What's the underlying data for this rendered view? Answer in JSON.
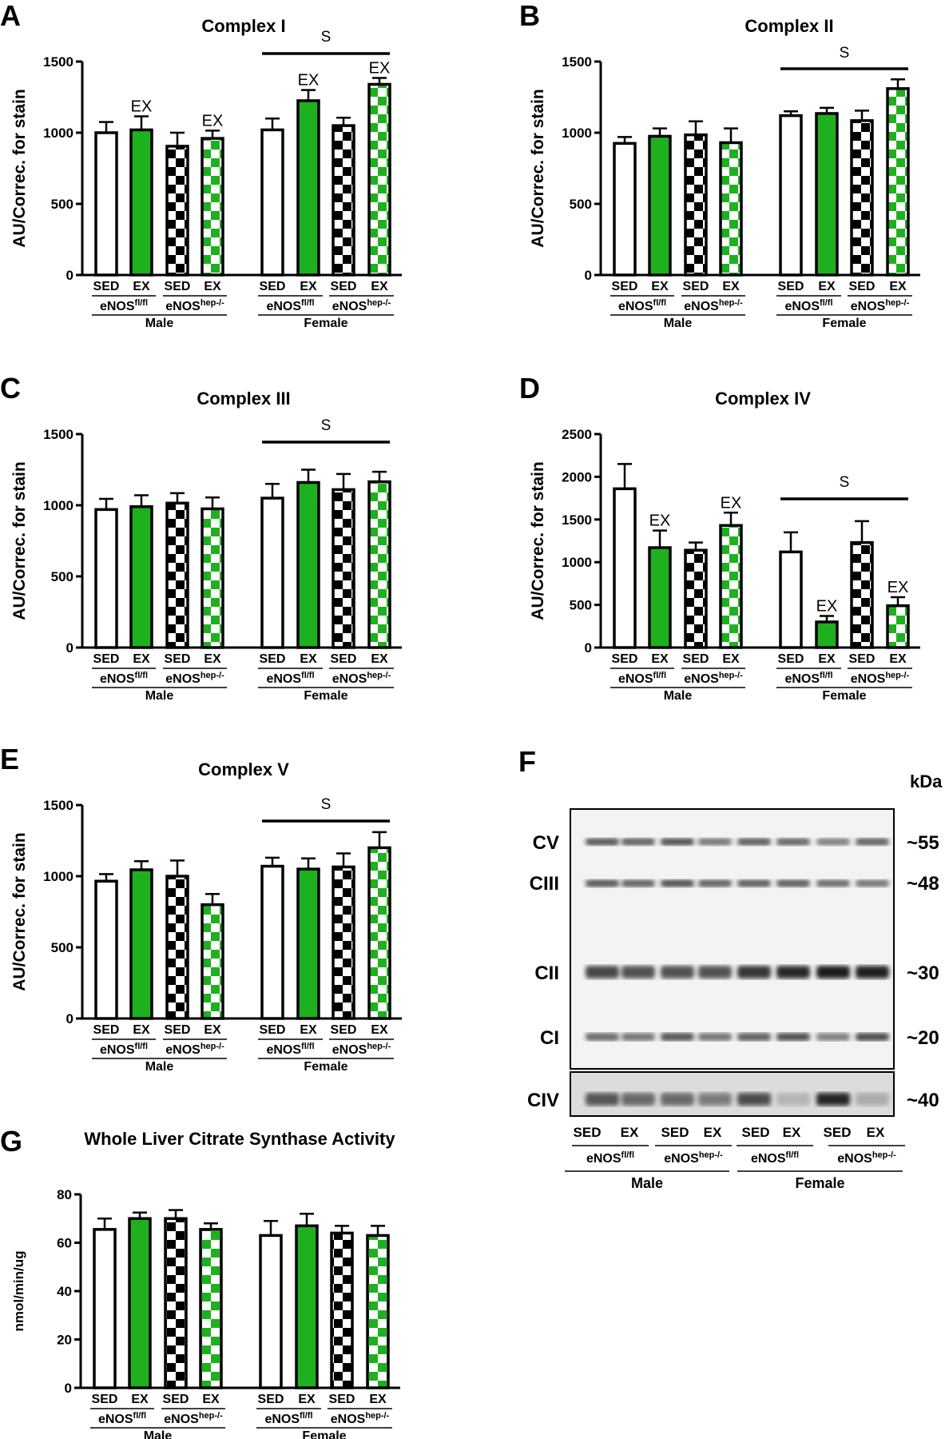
{
  "colors": {
    "green": "#1fb01f",
    "black": "#000000",
    "white": "#ffffff"
  },
  "x_labels": {
    "treatments": [
      "SED",
      "EX"
    ],
    "genotype_base": "eNOS",
    "genotype_sups": [
      "fl/fl",
      "hep-/-"
    ],
    "sexes": [
      "Male",
      "Female"
    ]
  },
  "bar_styles": [
    "white",
    "green",
    "black-checker",
    "green-checker"
  ],
  "chart_data": [
    {
      "panel": "A",
      "type": "bar",
      "title": "Complex I",
      "ylabel": "AU/Correc. for stain",
      "ylim": [
        0,
        1500
      ],
      "yticks": [
        0,
        500,
        1000,
        1500
      ],
      "categories": [
        "Male eNOSfl/fl SED",
        "Male eNOSfl/fl EX",
        "Male eNOShep-/- SED",
        "Male eNOShep-/- EX",
        "Female eNOSfl/fl SED",
        "Female eNOSfl/fl EX",
        "Female eNOShep-/- SED",
        "Female eNOShep-/- EX"
      ],
      "values": [
        1000,
        1020,
        905,
        960,
        1020,
        1225,
        1050,
        1340
      ],
      "errors": [
        75,
        95,
        95,
        55,
        80,
        75,
        55,
        45
      ],
      "annotations": [
        "",
        "EX",
        "",
        "EX",
        "",
        "EX",
        "",
        "EX"
      ],
      "group_annotation": "S"
    },
    {
      "panel": "B",
      "type": "bar",
      "title": "Complex II",
      "ylabel": "AU/Correc. for stain",
      "ylim": [
        0,
        1500
      ],
      "yticks": [
        0,
        500,
        1000,
        1500
      ],
      "categories": [
        "Male eNOSfl/fl SED",
        "Male eNOSfl/fl EX",
        "Male eNOShep-/- SED",
        "Male eNOShep-/- EX",
        "Female eNOSfl/fl SED",
        "Female eNOSfl/fl EX",
        "Female eNOShep-/- SED",
        "Female eNOShep-/- EX"
      ],
      "values": [
        925,
        975,
        985,
        930,
        1120,
        1135,
        1085,
        1310
      ],
      "errors": [
        45,
        55,
        95,
        100,
        30,
        40,
        70,
        65
      ],
      "annotations": [
        "",
        "",
        "",
        "",
        "",
        "",
        "",
        ""
      ],
      "group_annotation": "S"
    },
    {
      "panel": "C",
      "type": "bar",
      "title": "Complex III",
      "ylabel": "AU/Correc. for stain",
      "ylim": [
        0,
        1500
      ],
      "yticks": [
        0,
        500,
        1000,
        1500
      ],
      "categories": [
        "Male eNOSfl/fl SED",
        "Male eNOSfl/fl EX",
        "Male eNOShep-/- SED",
        "Male eNOShep-/- EX",
        "Female eNOSfl/fl SED",
        "Female eNOSfl/fl EX",
        "Female eNOShep-/- SED",
        "Female eNOShep-/- EX"
      ],
      "values": [
        970,
        990,
        1015,
        975,
        1050,
        1160,
        1110,
        1165
      ],
      "errors": [
        75,
        80,
        70,
        80,
        100,
        90,
        110,
        70
      ],
      "annotations": [
        "",
        "",
        "",
        "",
        "",
        "",
        "",
        ""
      ],
      "group_annotation": "S"
    },
    {
      "panel": "D",
      "type": "bar",
      "title": "Complex IV",
      "ylabel": "AU/Correc. for stain",
      "ylim": [
        0,
        2500
      ],
      "yticks": [
        0,
        500,
        1000,
        1500,
        2000,
        2500
      ],
      "categories": [
        "Male eNOSfl/fl SED",
        "Male eNOSfl/fl EX",
        "Male eNOShep-/- SED",
        "Male eNOShep-/- EX",
        "Female eNOSfl/fl SED",
        "Female eNOSfl/fl EX",
        "Female eNOShep-/- SED",
        "Female eNOShep-/- EX"
      ],
      "values": [
        1860,
        1170,
        1140,
        1430,
        1120,
        300,
        1230,
        490
      ],
      "errors": [
        290,
        200,
        90,
        150,
        230,
        70,
        250,
        100
      ],
      "annotations": [
        "",
        "EX",
        "",
        "EX",
        "",
        "EX",
        "",
        "EX"
      ],
      "group_annotation": "S"
    },
    {
      "panel": "E",
      "type": "bar",
      "title": "Complex V",
      "ylabel": "AU/Correc. for stain",
      "ylim": [
        0,
        1500
      ],
      "yticks": [
        0,
        500,
        1000,
        1500
      ],
      "categories": [
        "Male eNOSfl/fl SED",
        "Male eNOSfl/fl EX",
        "Male eNOShep-/- SED",
        "Male eNOShep-/- EX",
        "Female eNOSfl/fl SED",
        "Female eNOSfl/fl EX",
        "Female eNOShep-/- SED",
        "Female eNOShep-/- EX"
      ],
      "values": [
        965,
        1045,
        1000,
        800,
        1070,
        1050,
        1065,
        1200
      ],
      "errors": [
        50,
        60,
        110,
        75,
        60,
        75,
        95,
        110
      ],
      "annotations": [
        "",
        "",
        "",
        "",
        "",
        "",
        "",
        ""
      ],
      "group_annotation": "S"
    },
    {
      "panel": "G",
      "type": "bar",
      "title": "Whole Liver Citrate Synthase Activity",
      "ylabel": "nmol/min/ug",
      "ylim": [
        0,
        80
      ],
      "yticks": [
        0,
        20,
        40,
        60,
        80
      ],
      "categories": [
        "Male eNOSfl/fl SED",
        "Male eNOSfl/fl EX",
        "Male eNOShep-/- SED",
        "Male eNOShep-/- EX",
        "Female eNOSfl/fl SED",
        "Female eNOSfl/fl EX",
        "Female eNOShep-/- SED",
        "Female eNOShep-/- EX"
      ],
      "values": [
        65.5,
        70,
        70,
        65.5,
        63,
        67,
        64,
        63
      ],
      "errors": [
        4.5,
        2.5,
        3.5,
        2.5,
        6,
        5,
        3,
        4
      ],
      "annotations": [
        "",
        "",
        "",
        "",
        "",
        "",
        "",
        ""
      ],
      "group_annotation": ""
    }
  ],
  "blot": {
    "panel": "F",
    "unit": "kDa",
    "bands": [
      {
        "label": "CV",
        "size": "~55"
      },
      {
        "label": "CIII",
        "size": "~48"
      },
      {
        "label": "CII",
        "size": "~30"
      },
      {
        "label": "CI",
        "size": "~20"
      },
      {
        "label": "CIV",
        "size": "~40"
      }
    ]
  }
}
